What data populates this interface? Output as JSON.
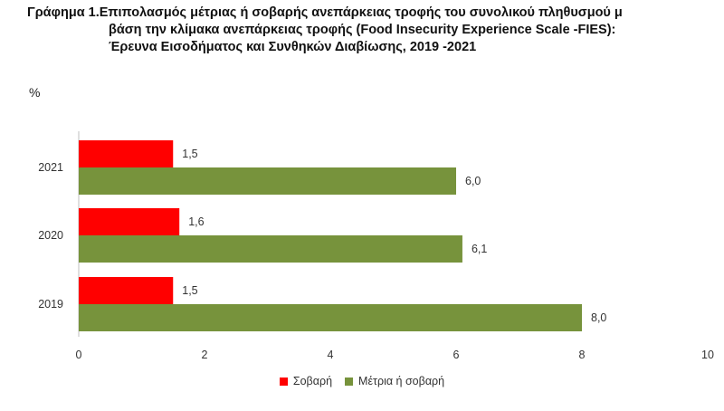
{
  "title": {
    "line1": "Γράφημα 1.Επιπολασμός μέτριας ή σοβαρής ανεπάρκειας τροφής του συνολικού πληθυσμού μ",
    "line2": "βάση την κλίμακα ανεπάρκειας τροφής (Food Insecurity Experience Scale -FIES):",
    "line3": "Έρευνα Εισοδήματος και Συνθηκών Διαβίωσης, 2019 -2021"
  },
  "unit_label": "%",
  "colors": {
    "severe": "#ff0000",
    "moderate_or_severe": "#77933c"
  },
  "chart_data": {
    "type": "bar",
    "orientation": "horizontal",
    "categories": [
      "2021",
      "2020",
      "2019"
    ],
    "series": [
      {
        "name": "Σοβαρή",
        "values": [
          1.5,
          1.6,
          1.5
        ],
        "labels": [
          "1,5",
          "1,6",
          "1,5"
        ],
        "color": "#ff0000"
      },
      {
        "name": "Μέτρια ή σοβαρή",
        "values": [
          6.0,
          6.1,
          8.0
        ],
        "labels": [
          "6,0",
          "6,1",
          "8,0"
        ],
        "color": "#77933c"
      }
    ],
    "xlim": [
      0,
      10
    ],
    "xticks": [
      "0",
      "2",
      "4",
      "6",
      "8",
      "10"
    ],
    "legend_position": "bottom",
    "grid": false
  }
}
